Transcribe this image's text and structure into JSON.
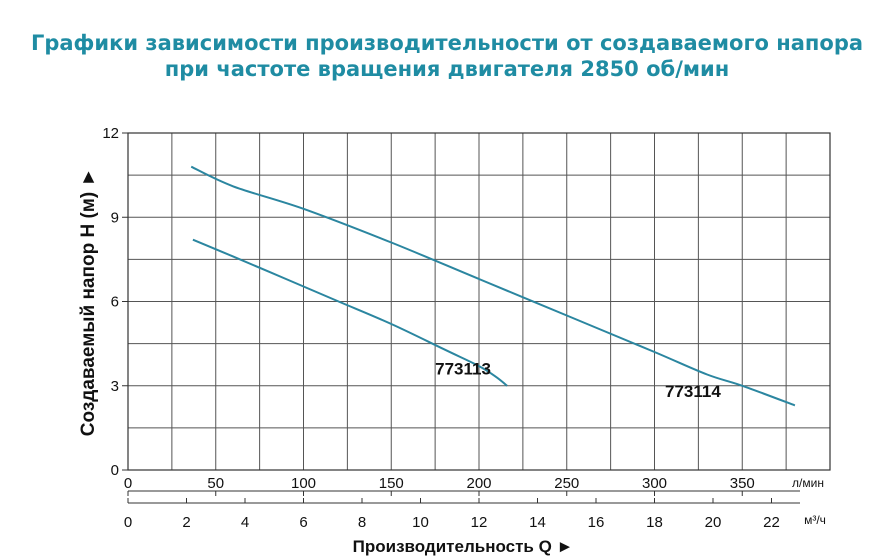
{
  "title": {
    "line1": "Графики зависимости производительности от создаваемого напора",
    "line2": "при частоте вращения двигателя 2850 об/мин"
  },
  "colors": {
    "title": "#1f8ca3",
    "curve": "#2b86a0",
    "grid": "#555555",
    "text": "#111111"
  },
  "chart_data": {
    "type": "line",
    "ylabel": "Создаваемый напор H (м) ►",
    "xlabel": "Производительность Q ►",
    "ylim": [
      0,
      12
    ],
    "yticks": [
      0,
      3,
      6,
      9,
      12
    ],
    "xlim_lpm": [
      0,
      400
    ],
    "xticks_lpm": [
      0,
      50,
      100,
      150,
      200,
      250,
      300,
      350
    ],
    "xunit_lpm": "л/мин",
    "xlim_m3h": [
      0,
      24
    ],
    "xticks_m3h": [
      0,
      2,
      4,
      6,
      8,
      10,
      12,
      14,
      16,
      18,
      20,
      22
    ],
    "xunit_m3h": "м³/ч",
    "grid": true,
    "series": [
      {
        "name": "773113",
        "x": [
          37,
          60,
          90,
          120,
          150,
          180,
          200,
          210,
          216
        ],
        "y": [
          8.2,
          7.6,
          6.8,
          6.0,
          5.2,
          4.3,
          3.7,
          3.3,
          3.0
        ]
      },
      {
        "name": "773114",
        "x": [
          36,
          60,
          100,
          150,
          200,
          250,
          300,
          330,
          350,
          380
        ],
        "y": [
          10.8,
          10.1,
          9.3,
          8.1,
          6.8,
          5.5,
          4.2,
          3.4,
          3.0,
          2.3
        ]
      }
    ]
  }
}
